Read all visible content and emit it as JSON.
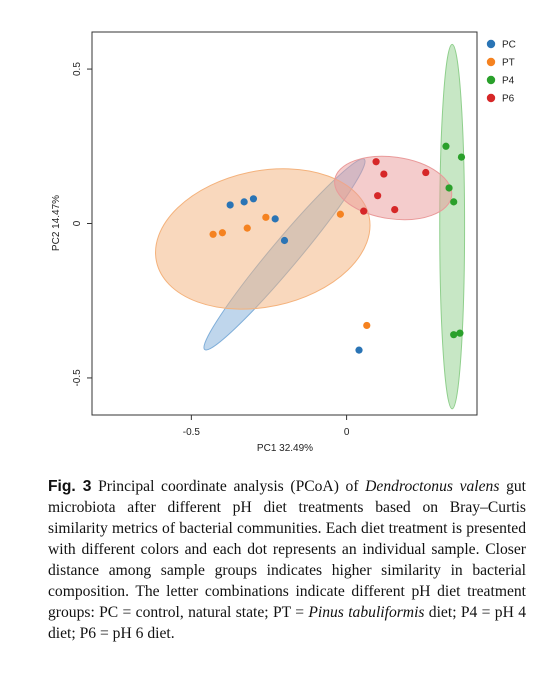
{
  "chart_data": {
    "type": "scatter",
    "xlabel": "PC1 32.49%",
    "ylabel": "PC2 14.47%",
    "xlim": [
      -0.82,
      0.42
    ],
    "ylim": [
      -0.62,
      0.62
    ],
    "x_ticks": [
      -0.5,
      0
    ],
    "x_tick_labels": [
      "-0.5",
      "0"
    ],
    "y_ticks": [
      0.5,
      0,
      -0.5
    ],
    "y_tick_labels": [
      "0.5",
      "0",
      "-0.5"
    ],
    "grid": false,
    "legend_position": "top-right",
    "series": [
      {
        "name": "PC",
        "color": "#2a74b5",
        "points": [
          [
            -0.375,
            0.06
          ],
          [
            -0.33,
            0.07
          ],
          [
            -0.3,
            0.08
          ],
          [
            -0.23,
            0.015
          ],
          [
            -0.2,
            -0.055
          ],
          [
            0.04,
            -0.41
          ]
        ],
        "ellipse": {
          "cx": -0.2,
          "cy": -0.1,
          "rx": 0.4,
          "ry": 0.045,
          "angle_deg": -50,
          "fill": "#7faed9"
        }
      },
      {
        "name": "PT",
        "color": "#f58220",
        "points": [
          [
            -0.43,
            -0.035
          ],
          [
            -0.4,
            -0.03
          ],
          [
            -0.32,
            -0.015
          ],
          [
            -0.26,
            0.02
          ],
          [
            -0.02,
            0.03
          ],
          [
            0.065,
            -0.33
          ]
        ],
        "ellipse": {
          "cx": -0.27,
          "cy": -0.05,
          "rx": 0.35,
          "ry": 0.22,
          "angle_deg": -12,
          "fill": "#f4b27c"
        }
      },
      {
        "name": "P4",
        "color": "#2aa02b",
        "points": [
          [
            0.32,
            0.25
          ],
          [
            0.37,
            0.215
          ],
          [
            0.33,
            0.115
          ],
          [
            0.345,
            0.07
          ],
          [
            0.345,
            -0.36
          ],
          [
            0.365,
            -0.355
          ]
        ],
        "ellipse": {
          "cx": 0.34,
          "cy": -0.01,
          "rx": 0.04,
          "ry": 0.59,
          "angle_deg": 0,
          "fill": "#8fcf8c"
        }
      },
      {
        "name": "P6",
        "color": "#d62728",
        "points": [
          [
            0.095,
            0.2
          ],
          [
            0.12,
            0.16
          ],
          [
            0.1,
            0.09
          ],
          [
            0.055,
            0.04
          ],
          [
            0.155,
            0.045
          ],
          [
            0.255,
            0.165
          ]
        ],
        "ellipse": {
          "cx": 0.15,
          "cy": 0.115,
          "rx": 0.19,
          "ry": 0.1,
          "angle_deg": 8,
          "fill": "#e99a9a"
        }
      }
    ]
  },
  "caption": {
    "label": "Fig. 3",
    "segments": [
      {
        "text": " Principal coordinate analysis (PCoA) of ",
        "italic": false
      },
      {
        "text": "Dendroctonus valens",
        "italic": true
      },
      {
        "text": " gut microbiota after different pH diet treatments based on Bray–Curtis similarity metrics of bacterial communities. Each diet treatment is presented with different colors and each dot represents an individual sample. Closer distance among sample groups indicates higher similarity in bacterial composition. The letter combinations indicate different pH diet treatment groups: PC = control, natural state; PT = ",
        "italic": false
      },
      {
        "text": "Pinus tabuliformis",
        "italic": true
      },
      {
        "text": " diet; P4 = pH 4 diet; P6 = pH 6 diet.",
        "italic": false
      }
    ]
  }
}
